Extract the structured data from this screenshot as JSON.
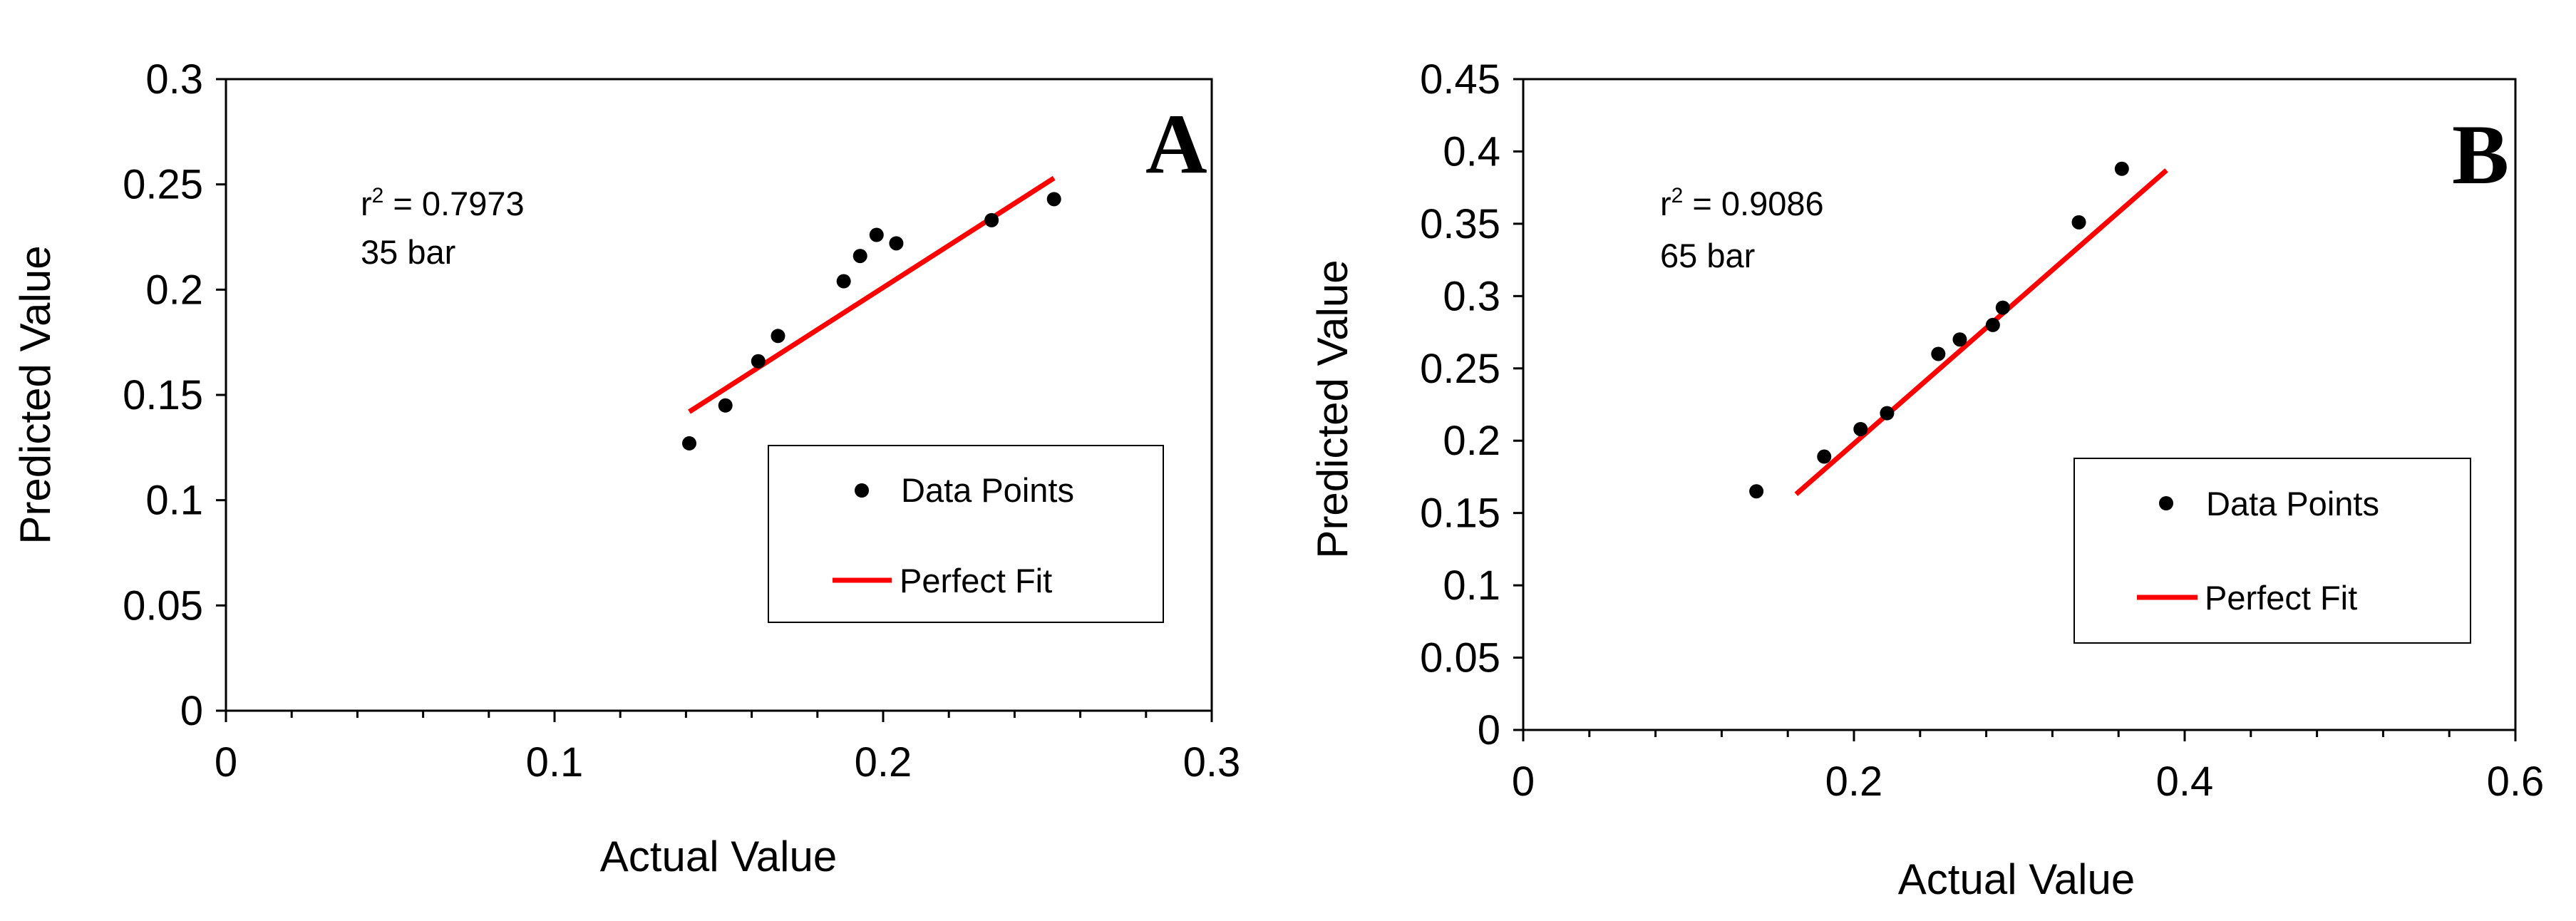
{
  "chart_data": [
    {
      "type": "scatter",
      "panel_label": "A",
      "xlabel": "Actual Value",
      "ylabel": "Predicted Value",
      "xlim": [
        0,
        0.3
      ],
      "ylim": [
        0,
        0.3
      ],
      "x_ticks": [
        0,
        0.1,
        0.2,
        0.3
      ],
      "x_tick_labels": [
        "0",
        "0.1",
        "0.2",
        "0.3"
      ],
      "x_minor_step": 0.02,
      "y_ticks": [
        0,
        0.05,
        0.1,
        0.15,
        0.2,
        0.25,
        0.3
      ],
      "y_tick_labels": [
        "0",
        "0.05",
        "0.1",
        "0.15",
        "0.2",
        "0.25",
        "0.3"
      ],
      "annotation": {
        "r2_prefix": "r",
        "r2_sup": "2",
        "r2_value": " = 0.7973",
        "condition": "35 bar"
      },
      "legend": {
        "position": "bottom-right",
        "points_label": "Data Points",
        "line_label": "Perfect Fit"
      },
      "series": [
        {
          "name": "Data Points",
          "kind": "points",
          "color": "#000000",
          "x": [
            0.141,
            0.152,
            0.162,
            0.168,
            0.188,
            0.193,
            0.198,
            0.204,
            0.233,
            0.252
          ],
          "y": [
            0.127,
            0.145,
            0.166,
            0.178,
            0.204,
            0.216,
            0.226,
            0.222,
            0.233,
            0.243
          ]
        },
        {
          "name": "Perfect Fit",
          "kind": "line",
          "color": "#ff0000",
          "x": [
            0.141,
            0.252
          ],
          "y": [
            0.142,
            0.253
          ]
        }
      ]
    },
    {
      "type": "scatter",
      "panel_label": "B",
      "xlabel": "Actual Value",
      "ylabel": "Predicted Value",
      "xlim": [
        0,
        0.6
      ],
      "ylim": [
        0,
        0.45
      ],
      "x_ticks": [
        0,
        0.2,
        0.4,
        0.6
      ],
      "x_tick_labels": [
        "0",
        "0.2",
        "0.4",
        "0.6"
      ],
      "x_minor_step": 0.04,
      "y_ticks": [
        0,
        0.05,
        0.1,
        0.15,
        0.2,
        0.25,
        0.3,
        0.35,
        0.4,
        0.45
      ],
      "y_tick_labels": [
        "0",
        "0.05",
        "0.1",
        "0.15",
        "0.2",
        "0.25",
        "0.3",
        "0.35",
        "0.4",
        "0.45"
      ],
      "annotation": {
        "r2_prefix": "r",
        "r2_sup": "2",
        "r2_value": " = 0.9086",
        "condition": "65 bar"
      },
      "legend": {
        "position": "bottom-right",
        "points_label": "Data Points",
        "line_label": "Perfect Fit"
      },
      "series": [
        {
          "name": "Data Points",
          "kind": "points",
          "color": "#000000",
          "x": [
            0.141,
            0.182,
            0.204,
            0.22,
            0.251,
            0.264,
            0.284,
            0.29,
            0.336,
            0.362
          ],
          "y": [
            0.165,
            0.189,
            0.208,
            0.219,
            0.26,
            0.27,
            0.28,
            0.292,
            0.351,
            0.388
          ]
        },
        {
          "name": "Perfect Fit",
          "kind": "line",
          "color": "#ff0000",
          "x": [
            0.165,
            0.389
          ],
          "y": [
            0.163,
            0.387
          ]
        }
      ]
    }
  ]
}
